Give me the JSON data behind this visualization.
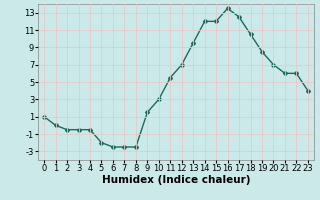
{
  "x": [
    0,
    1,
    2,
    3,
    4,
    5,
    6,
    7,
    8,
    9,
    10,
    11,
    12,
    13,
    14,
    15,
    16,
    17,
    18,
    19,
    20,
    21,
    22,
    23
  ],
  "y": [
    1,
    0,
    -0.5,
    -0.5,
    -0.5,
    -2,
    -2.5,
    -2.5,
    -2.5,
    1.5,
    3,
    5.5,
    7,
    9.5,
    12,
    12,
    13.5,
    12.5,
    10.5,
    8.5,
    7,
    6,
    6,
    4
  ],
  "line_color": "#1a6b5a",
  "marker": "D",
  "marker_size": 2,
  "xlabel": "Humidex (Indice chaleur)",
  "xlim": [
    -0.5,
    23.5
  ],
  "ylim": [
    -4,
    14
  ],
  "yticks": [
    -3,
    -1,
    1,
    3,
    5,
    7,
    9,
    11,
    13
  ],
  "xticks": [
    0,
    1,
    2,
    3,
    4,
    5,
    6,
    7,
    8,
    9,
    10,
    11,
    12,
    13,
    14,
    15,
    16,
    17,
    18,
    19,
    20,
    21,
    22,
    23
  ],
  "background_color": "#cce9e9",
  "grid_color": "#e8c8c8",
  "tick_label_fontsize": 6,
  "xlabel_fontsize": 7.5
}
